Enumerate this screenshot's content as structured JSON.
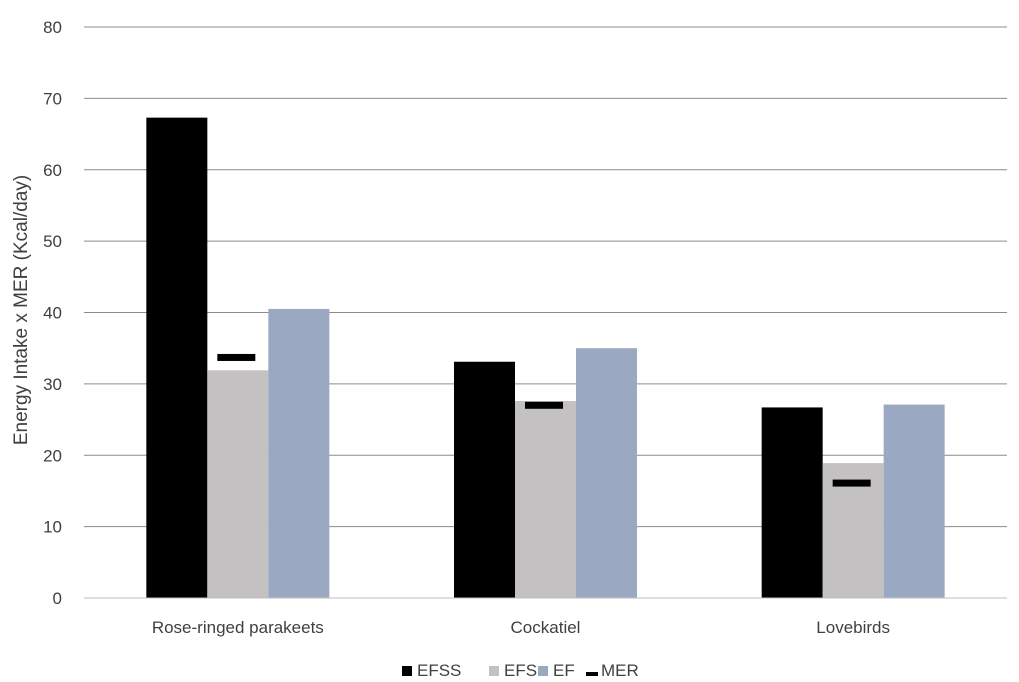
{
  "chart_data": {
    "type": "bar",
    "title": "",
    "xlabel": "",
    "ylabel": "Energy Intake x MER (Kcal/day)",
    "ylim": [
      0,
      80
    ],
    "yticks": [
      0,
      10,
      20,
      30,
      40,
      50,
      60,
      70,
      80
    ],
    "grid": true,
    "legend_position": "bottom",
    "categories": [
      "Rose-ringed parakeets",
      "Cockatiel",
      "Lovebirds"
    ],
    "series": [
      {
        "name": "EFSS",
        "values": [
          67.3,
          33.1,
          26.7
        ],
        "color": "#000000",
        "kind": "bar"
      },
      {
        "name": "EFS",
        "values": [
          31.9,
          27.6,
          18.9
        ],
        "color": "#c3c1c1",
        "kind": "bar"
      },
      {
        "name": "EF",
        "values": [
          40.5,
          35.0,
          27.1
        ],
        "color": "#9aa9c1",
        "kind": "bar"
      },
      {
        "name": "MER",
        "values": [
          33.7,
          27.0,
          16.1
        ],
        "color": "#000000",
        "kind": "marker"
      }
    ]
  }
}
